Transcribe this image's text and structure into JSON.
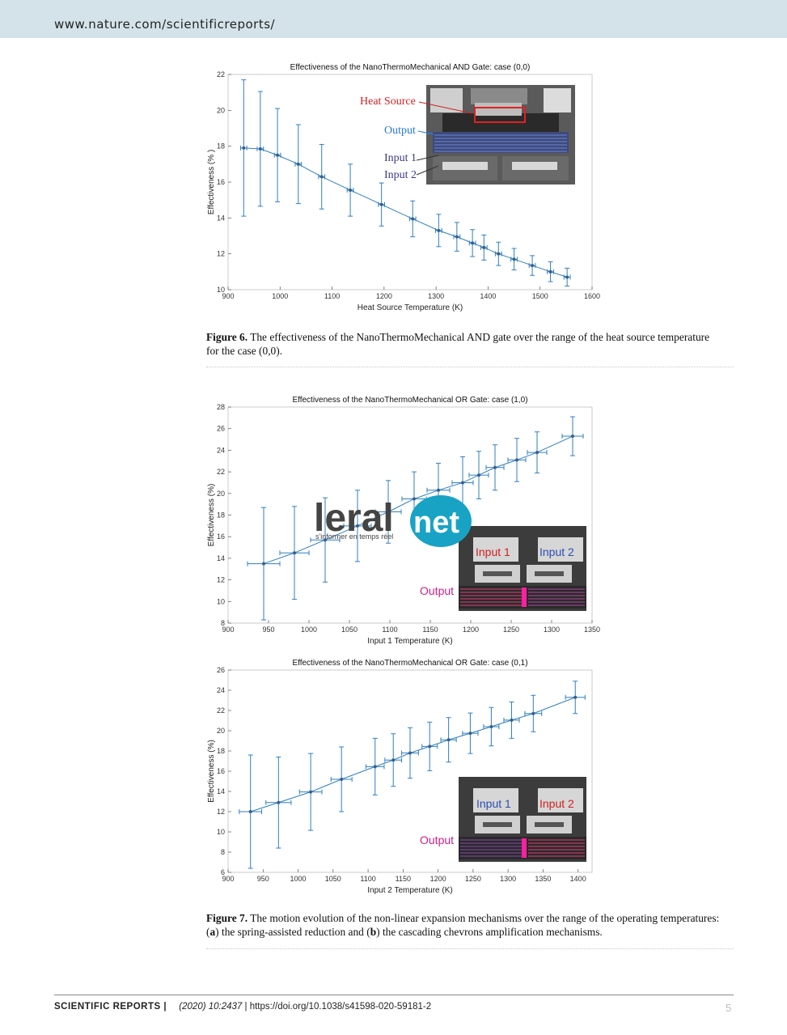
{
  "header": {
    "url": "www.nature.com/scientificreports/"
  },
  "figure6": {
    "label": "Figure 6.",
    "caption": "The effectiveness of the NanoThermoMechanical AND gate over the range of the heat source temperature for the case (0,0).",
    "inset_labels": {
      "heat_source": "Heat Source",
      "output": "Output",
      "input1": "Input 1",
      "input2": "Input 2"
    }
  },
  "figure7": {
    "label": "Figure 7.",
    "caption_pre": "The motion evolution of the non-linear expansion mechanisms over the range of the operating temperatures: (",
    "a": "a",
    "caption_mid": ") the spring-assisted reduction and (",
    "b": "b",
    "caption_post": ") the cascading chevrons amplification mechanisms.",
    "inset_a": {
      "input1": "Input 1",
      "input2": "Input 2",
      "output": "Output"
    },
    "inset_b": {
      "input1": "Input 1",
      "input2": "Input 2",
      "output": "Output"
    }
  },
  "watermark": {
    "brand": "leral",
    "brand_suffix": "net",
    "tagline": "s'informer en temps réel"
  },
  "footer": {
    "journal": "SCIENTIFIC REPORTS |",
    "volume": "(2020) 10:2437",
    "doi": " | https://doi.org/10.1038/s41598-020-59181-2",
    "page": "5"
  },
  "colors": {
    "series": "#2f7fc0",
    "marker": "#3a5f8a",
    "label_red": "#d42020",
    "label_blue": "#2a4fb0",
    "label_magenta": "#d0208a"
  },
  "chart_data": [
    {
      "type": "line",
      "title": "Effectiveness of the NanoThermoMechanical AND Gate: case (0,0)",
      "xlabel": "Heat Source Temperature (K)",
      "ylabel": "Effectiveness (%   )",
      "xlim": [
        900,
        1600
      ],
      "ylim": [
        10,
        22
      ],
      "xticks": [
        900,
        1000,
        1100,
        1200,
        1300,
        1400,
        1500,
        1600
      ],
      "yticks": [
        10,
        12,
        14,
        16,
        18,
        20,
        22
      ],
      "x": [
        930,
        962,
        995,
        1035,
        1080,
        1135,
        1195,
        1255,
        1305,
        1340,
        1370,
        1392,
        1420,
        1450,
        1485,
        1520,
        1552
      ],
      "y": [
        17.9,
        17.85,
        17.5,
        17.0,
        16.3,
        15.55,
        14.75,
        13.95,
        13.3,
        12.95,
        12.6,
        12.35,
        12.0,
        11.7,
        11.35,
        11.0,
        10.7
      ],
      "yerr": [
        3.8,
        3.2,
        2.6,
        2.2,
        1.8,
        1.45,
        1.2,
        1.0,
        0.9,
        0.8,
        0.75,
        0.7,
        0.65,
        0.6,
        0.55,
        0.55,
        0.5
      ],
      "xerr": [
        6,
        6,
        6,
        6,
        6,
        6,
        6,
        6,
        6,
        6,
        6,
        6,
        6,
        6,
        6,
        6,
        6
      ],
      "grid": false
    },
    {
      "type": "line",
      "title": "Effectiveness of the NanoThermoMechanical OR Gate: case (1,0)",
      "xlabel": "Input 1 Temperature (K)",
      "ylabel": "Effectiveness (%)",
      "xlim": [
        900,
        1350
      ],
      "ylim": [
        8,
        28
      ],
      "xticks": [
        900,
        950,
        1000,
        1050,
        1100,
        1150,
        1200,
        1250,
        1300,
        1350
      ],
      "yticks": [
        8,
        10,
        12,
        14,
        16,
        18,
        20,
        22,
        24,
        26,
        28
      ],
      "x": [
        944,
        982,
        1020,
        1060,
        1098,
        1130,
        1160,
        1190,
        1210,
        1230,
        1257,
        1282,
        1326
      ],
      "y": [
        13.5,
        14.5,
        15.7,
        17.0,
        18.3,
        19.5,
        20.3,
        21.0,
        21.7,
        22.4,
        23.1,
        23.8,
        25.3
      ],
      "yerr": [
        5.2,
        4.3,
        3.9,
        3.3,
        2.9,
        2.5,
        2.5,
        2.4,
        2.2,
        2.1,
        2.0,
        1.9,
        1.8
      ],
      "xerr": [
        20,
        18,
        18,
        17,
        16,
        15,
        14,
        13,
        12,
        11,
        11,
        12,
        13
      ],
      "grid": false
    },
    {
      "type": "line",
      "title": "Effectiveness of the NanoThermoMechanical OR Gate: case (0,1)",
      "xlabel": "Input 2 Temperature (K)",
      "ylabel": "Effectiveness (%)",
      "xlim": [
        900,
        1420
      ],
      "ylim": [
        6,
        26
      ],
      "xticks": [
        900,
        950,
        1000,
        1050,
        1100,
        1150,
        1200,
        1250,
        1300,
        1350,
        1400
      ],
      "yticks": [
        6,
        8,
        10,
        12,
        14,
        16,
        18,
        20,
        22,
        24,
        26
      ],
      "x": [
        932,
        972,
        1018,
        1062,
        1110,
        1136,
        1160,
        1188,
        1215,
        1246,
        1276,
        1305,
        1336,
        1396
      ],
      "y": [
        12.0,
        12.9,
        13.95,
        15.2,
        16.45,
        17.1,
        17.8,
        18.45,
        19.1,
        19.75,
        20.4,
        21.05,
        21.7,
        23.3
      ],
      "yerr": [
        5.6,
        4.5,
        3.8,
        3.2,
        2.8,
        2.6,
        2.5,
        2.4,
        2.2,
        2.0,
        1.9,
        1.8,
        1.8,
        1.6
      ],
      "xerr": [
        16,
        18,
        16,
        15,
        13,
        12,
        12,
        11,
        11,
        11,
        11,
        11,
        12,
        14
      ],
      "grid": false
    }
  ]
}
